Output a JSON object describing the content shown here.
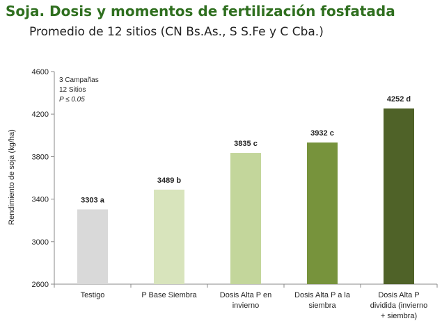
{
  "title": "Soja. Dosis y momentos de fertilización fosfatada",
  "subtitle": "Promedio de 12 sitios (CN Bs.As., S S.Fe y C Cba.)",
  "chart_data": {
    "type": "bar",
    "title": "",
    "xlabel": "",
    "ylabel": "Rendimiento de soja (kg/ha)",
    "ylim": [
      2600,
      4600
    ],
    "yticks": [
      2600,
      3000,
      3400,
      3800,
      4200,
      4600
    ],
    "grid": false,
    "categories": [
      [
        "Testigo"
      ],
      [
        "P Base Siembra"
      ],
      [
        "Dosis Alta P en",
        "invierno"
      ],
      [
        "Dosis Alta P a la",
        "siembra"
      ],
      [
        "Dosis Alta P",
        "dividida (invierno",
        "+ siembra)"
      ]
    ],
    "values": [
      3303,
      3489,
      3835,
      3932,
      4252
    ],
    "data_labels": [
      "3303 a",
      "3489 b",
      "3835 c",
      "3932 c",
      "4252 d"
    ],
    "colors": [
      "#d9d9d9",
      "#d8e4bc",
      "#c3d69b",
      "#77933c",
      "#4f6228"
    ],
    "annotations": [
      "3 Campañas",
      "12 Sitios",
      "P ≤ 0.05"
    ]
  }
}
